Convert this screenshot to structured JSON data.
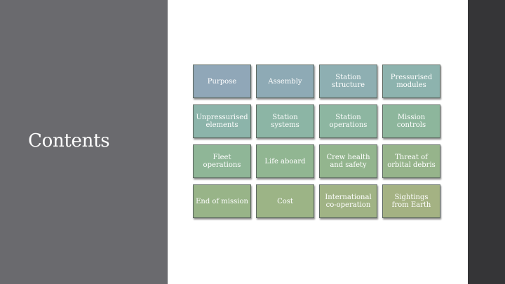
{
  "slide": {
    "title": "Contents"
  },
  "tiles": [
    {
      "label": "Purpose",
      "color": "#90a7b8"
    },
    {
      "label": "Assembly",
      "color": "#8eaab5"
    },
    {
      "label": "Station structure",
      "color": "#8eafb2"
    },
    {
      "label": "Pressurised modules",
      "color": "#8db3ae"
    },
    {
      "label": "Unpressurised elements",
      "color": "#8cb4aa"
    },
    {
      "label": "Station systems",
      "color": "#8cb5a5"
    },
    {
      "label": "Station operations",
      "color": "#8db6a1"
    },
    {
      "label": "Mission controls",
      "color": "#8db69c"
    },
    {
      "label": "Fleet operations",
      "color": "#8fb697"
    },
    {
      "label": "Life aboard",
      "color": "#91b692"
    },
    {
      "label": "Crew health and safety",
      "color": "#93b58e"
    },
    {
      "label": "Threat of orbital debris",
      "color": "#96b48b"
    },
    {
      "label": "End of mission",
      "color": "#98b488"
    },
    {
      "label": "Cost",
      "color": "#9cb486"
    },
    {
      "label": "International co-operation",
      "color": "#a0b385"
    },
    {
      "label": "Sightings from Earth",
      "color": "#a4b283"
    }
  ],
  "colors": {
    "left_panel": "#6a6a6e",
    "right_bar": "#353537",
    "background": "#ffffff"
  }
}
